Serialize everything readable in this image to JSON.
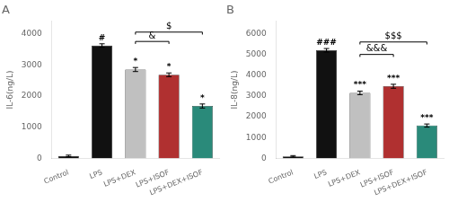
{
  "chart_data": [
    {
      "type": "bar",
      "title": "A",
      "y_label": "IL-6(ng/L)",
      "categories": [
        "Control",
        "LPS",
        "LPS+DEX",
        "LPS+ISOF",
        "LPS+DEX+ISOF"
      ],
      "values": [
        80,
        3620,
        2850,
        2680,
        1680
      ],
      "errors": [
        25,
        55,
        65,
        60,
        65
      ],
      "colors": [
        "#111111",
        "#111111",
        "#c0c0c0",
        "#b03030",
        "#2a8a7a"
      ],
      "ylim": [
        0,
        4400
      ],
      "yticks": [
        0,
        1000,
        2000,
        3000,
        4000
      ],
      "grid": false,
      "significance_labels": [
        null,
        "#",
        "*",
        "*",
        "*"
      ],
      "brackets": [
        {
          "from": "LPS+DEX",
          "to": "LPS+ISOF",
          "y": 3750,
          "label": "&"
        },
        {
          "from": "LPS+DEX",
          "to": "LPS+DEX+ISOF",
          "y": 4050,
          "label": "$"
        }
      ]
    },
    {
      "type": "bar",
      "title": "B",
      "y_label": "IL-8(ng/L)",
      "categories": [
        "Control",
        "LPS",
        "LPS+DEX",
        "LPS+ISOF",
        "LPS+DEX+ISOF"
      ],
      "values": [
        100,
        5200,
        3150,
        3470,
        1580
      ],
      "errors": [
        35,
        85,
        85,
        95,
        75
      ],
      "colors": [
        "#111111",
        "#111111",
        "#c0c0c0",
        "#b03030",
        "#2a8a7a"
      ],
      "ylim": [
        0,
        6600
      ],
      "yticks": [
        0,
        1000,
        2000,
        3000,
        4000,
        5000,
        6000
      ],
      "grid": false,
      "significance_labels": [
        null,
        "###",
        "***",
        "***",
        "***"
      ],
      "brackets": [
        {
          "from": "LPS+DEX",
          "to": "LPS+ISOF",
          "y": 5000,
          "label": "&&&"
        },
        {
          "from": "LPS+DEX",
          "to": "LPS+DEX+ISOF",
          "y": 5600,
          "label": "$$$"
        }
      ]
    }
  ]
}
